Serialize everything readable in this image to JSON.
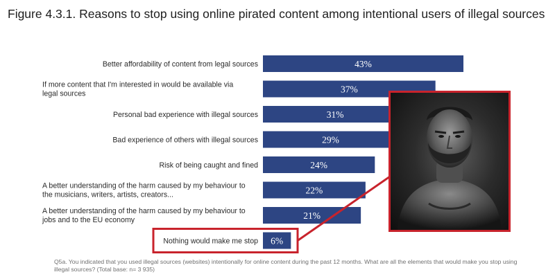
{
  "title": "Figure 4.3.1. Reasons to stop using online pirated content among intentional users of illegal sources",
  "footnote": "Q5a. You indicated that you used illegal sources (websites) intentionally for online content during the past 12 months. What are all the elements that would make you stop using illegal sources? (Total base: n= 3 935)",
  "colors": {
    "bar": "#2d4583",
    "highlight": "#c8232c",
    "text": "#2a2a2a",
    "bar_text": "#ffffff"
  },
  "chart_data": {
    "type": "bar",
    "orientation": "horizontal",
    "categories": [
      [
        "Better affordability of content from legal sources"
      ],
      [
        "If more content that I'm interested in would be available via",
        "legal sources"
      ],
      [
        "Personal bad experience with illegal sources"
      ],
      [
        "Bad experience of others with illegal sources"
      ],
      [
        "Risk of being caught and fined"
      ],
      [
        "A better understanding of the harm caused by my behaviour to",
        "the musicians, writers, artists, creators..."
      ],
      [
        "A better understanding of the harm caused by my behaviour to",
        "jobs and to the EU economy"
      ],
      [
        "Nothing would make me stop"
      ]
    ],
    "values": [
      43,
      37,
      31,
      29,
      24,
      22,
      21,
      6
    ],
    "value_labels": [
      "43%",
      "37%",
      "31%",
      "29%",
      "24%",
      "22%",
      "21%",
      "6%"
    ],
    "unit": "%",
    "highlighted_category_index": 7,
    "xlim": [
      0,
      43
    ]
  },
  "overlay_image": {
    "subject": "dark greyscale portrait photo of a bearded muscular man",
    "border_color": "#c8232c"
  }
}
